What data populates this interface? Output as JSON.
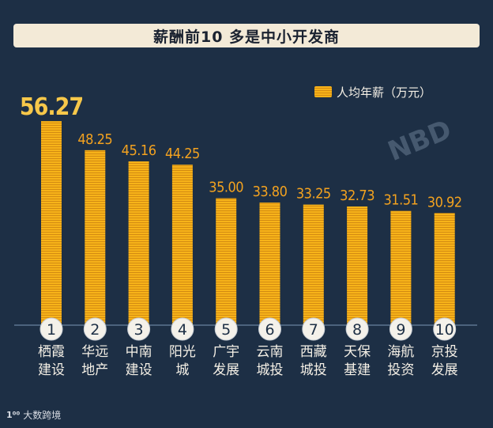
{
  "title": "薪酬前10 多是中小开发商",
  "legend": "人均年薪（万元）",
  "watermark": "NBD",
  "footer_logo": "大数跨境",
  "colors": {
    "background": "#1d2f45",
    "bar": "#f7b319",
    "bar_stripe": "#d38b12",
    "value_top": "#f7c84a",
    "value": "#f3a21f",
    "label": "#f5f0e6",
    "circle_fill": "#f4f1ea",
    "circle_text": "#1d2f45"
  },
  "chart_data": {
    "type": "bar",
    "title": "薪酬前10 多是中小开发商",
    "ylabel": "",
    "xlabel": "",
    "ylim": [
      0,
      60
    ],
    "grid": false,
    "legend_position": "top-right",
    "series": [
      {
        "name": "人均年薪（万元）",
        "values": [
          56.27,
          48.25,
          45.16,
          44.25,
          35.0,
          33.8,
          33.25,
          32.73,
          31.51,
          30.92
        ]
      }
    ],
    "value_labels": [
      "56.27",
      "48.25",
      "45.16",
      "44.25",
      "35.00",
      "33.80",
      "33.25",
      "32.73",
      "31.51",
      "30.92"
    ],
    "ranks": [
      "1",
      "2",
      "3",
      "4",
      "5",
      "6",
      "7",
      "8",
      "9",
      "10"
    ],
    "categories": [
      [
        "栖霞",
        "建设"
      ],
      [
        "华远",
        "地产"
      ],
      [
        "中南",
        "建设"
      ],
      [
        "阳光",
        "城"
      ],
      [
        "广宇",
        "发展"
      ],
      [
        "云南",
        "城投"
      ],
      [
        "西藏",
        "城投"
      ],
      [
        "天保",
        "基建"
      ],
      [
        "海航",
        "投资"
      ],
      [
        "京投",
        "发展"
      ]
    ]
  }
}
